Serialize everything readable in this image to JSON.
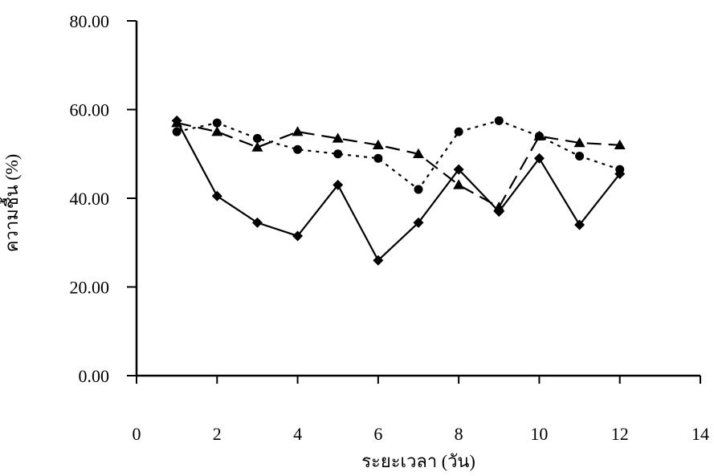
{
  "chart_data": {
    "type": "line",
    "xlabel": "ระยะเวลา (วัน)",
    "ylabel": "ความชื้น (%)",
    "xlim": [
      0,
      14
    ],
    "ylim": [
      0,
      80
    ],
    "x_ticks": [
      "0",
      "2",
      "4",
      "6",
      "8",
      "10",
      "12",
      "14"
    ],
    "y_ticks": [
      "0.00",
      "20.00",
      "40.00",
      "60.00",
      "80.00"
    ],
    "grid": false,
    "x": [
      1,
      2,
      3,
      4,
      5,
      6,
      7,
      8,
      9,
      10,
      11,
      12
    ],
    "series": [
      {
        "marker": "diamond",
        "line_style": "solid",
        "color": "#000000",
        "values": [
          57.5,
          40.5,
          34.5,
          31.5,
          43.0,
          26.0,
          34.5,
          46.5,
          37.0,
          49.0,
          34.0,
          45.5
        ]
      },
      {
        "marker": "triangle",
        "line_style": "long-dash",
        "color": "#000000",
        "values": [
          57.0,
          55.0,
          51.5,
          55.0,
          53.5,
          52.0,
          50.0,
          43.0,
          38.0,
          54.0,
          52.5,
          52.0
        ]
      },
      {
        "marker": "circle",
        "line_style": "dotted",
        "color": "#000000",
        "values": [
          55.0,
          57.0,
          53.5,
          51.0,
          50.0,
          49.0,
          42.0,
          55.0,
          57.5,
          54.0,
          49.5,
          46.5
        ]
      }
    ]
  }
}
